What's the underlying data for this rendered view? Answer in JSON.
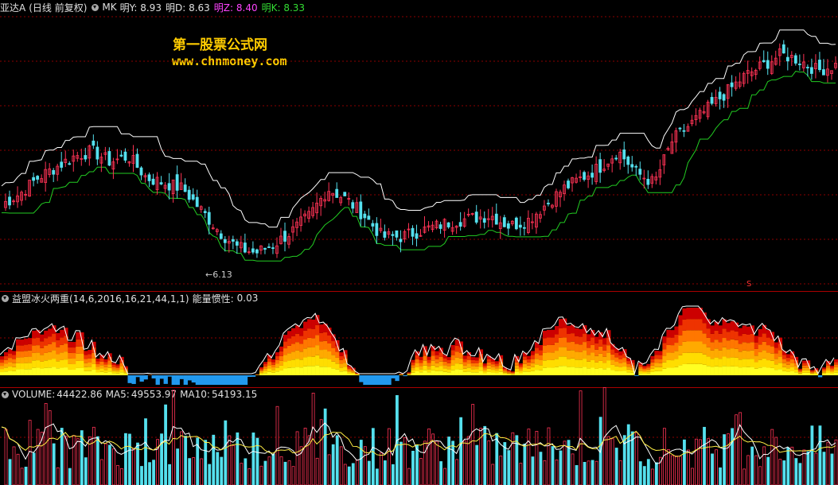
{
  "header": {
    "stock_name": "亚达A",
    "stock_suffix": "(日线 前复权)",
    "indicator": "MK",
    "items": [
      {
        "label": "明Y:",
        "value": "8.93",
        "color": "#e0e0e0"
      },
      {
        "label": "明D:",
        "value": "8.63",
        "color": "#e0e0e0"
      },
      {
        "label": "明Z:",
        "value": "8.40",
        "color": "#ff44ff"
      },
      {
        "label": "明K:",
        "value": "8.33",
        "color": "#33dd33"
      }
    ]
  },
  "watermark": {
    "line1": "第一股票公式网",
    "line2": "www.chnmoney.com"
  },
  "low_label": "6.13",
  "signal_label": "S",
  "indicator_panel": {
    "name": "益盟冰火两重(14,6,2016,16,21,44,1,1)",
    "metric_label": "能量惯性:",
    "metric_value": "0.03"
  },
  "volume_panel": {
    "label": "VOLUME:",
    "value": "44422.86",
    "ma5_label": "MA5:",
    "ma5": "49553.97",
    "ma10_label": "MA10:",
    "ma10": "54193.15"
  },
  "colors": {
    "up": "#ff3355",
    "down": "#55e0ee",
    "upper_band": "#ffffff",
    "lower_band": "#22cc22",
    "grid": "#8b0000"
  },
  "chart_data": [
    {
      "type": "candlestick",
      "low_marked": 6.13,
      "close_path": [
        7.1,
        7.3,
        7.6,
        7.8,
        8.0,
        8.1,
        7.9,
        8.0,
        7.6,
        7.5,
        7.4,
        7.0,
        6.6,
        6.3,
        6.2,
        6.35,
        6.6,
        6.9,
        7.4,
        7.2,
        6.9,
        6.5,
        6.5,
        6.6,
        6.7,
        6.8,
        6.85,
        6.9,
        6.7,
        6.8,
        7.1,
        7.4,
        7.6,
        7.8,
        8.1,
        7.7,
        7.5,
        8.3,
        8.6,
        8.9,
        9.2,
        9.5,
        9.7,
        9.9,
        9.8,
        9.6,
        9.7
      ]
    },
    {
      "type": "area",
      "name": "益盟冰火两重",
      "metric": 0.03
    },
    {
      "type": "bar",
      "name": "VOLUME",
      "value": 44422.86,
      "ma5": 49553.97,
      "ma10": 54193.15
    }
  ]
}
